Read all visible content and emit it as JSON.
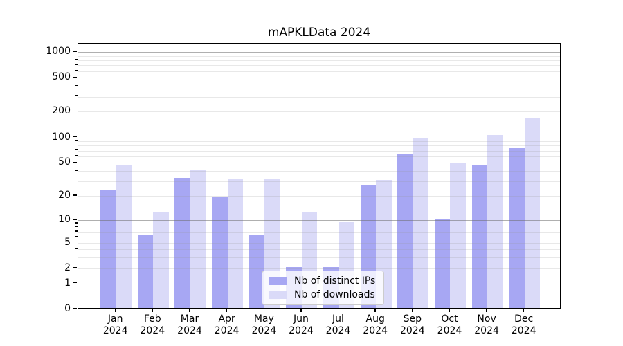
{
  "figure": {
    "title": "mAPKLData 2024",
    "background": "#ffffff"
  },
  "chart_data": {
    "type": "bar",
    "title": "mAPKLData 2024",
    "scale": "log1p",
    "grid": true,
    "legend_position": "lower center",
    "categories": [
      "Jan",
      "Feb",
      "Mar",
      "Apr",
      "May",
      "Jun",
      "Jul",
      "Aug",
      "Sep",
      "Oct",
      "Nov",
      "Dec"
    ],
    "x_tick_year": "2024",
    "y_ticks": [
      0,
      1,
      2,
      5,
      10,
      20,
      50,
      100,
      200,
      500,
      1000
    ],
    "ylim": [
      0,
      1250
    ],
    "series": [
      {
        "name": "Nb of distinct IPs",
        "color": "#a7a7f3",
        "values": [
          23,
          6,
          32,
          19,
          6,
          2,
          2,
          26,
          62,
          10,
          45,
          72
        ]
      },
      {
        "name": "Nb of downloads",
        "color": "#dadaf8",
        "values": [
          45,
          12,
          40,
          31,
          31,
          12,
          9,
          30,
          94,
          48,
          103,
          165
        ]
      }
    ]
  },
  "colors": {
    "spine": "#000000",
    "legend_border": "#cccccc",
    "dark_bar": "#a7a7f3",
    "light_bar": "#dadaf8"
  }
}
